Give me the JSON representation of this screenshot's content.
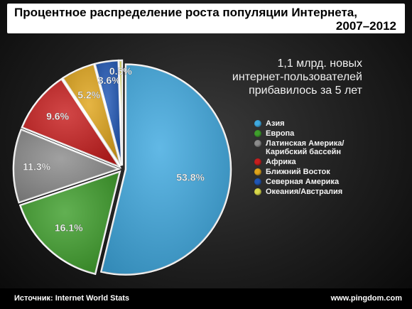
{
  "title_line1": "Процентное распределение роста популяции Интернета,",
  "title_line2": "2007–2012",
  "subtitle_lines": [
    "1,1 млрд. новых",
    "интернет-пользователей",
    "прибавилось за 5 лет"
  ],
  "footer": {
    "source": "Источник: Internet World Stats",
    "site": "www.pingdom.com"
  },
  "chart_data": {
    "type": "pie",
    "title": "Процентное распределение роста популяции Интернета, 2007–2012",
    "unit": "%",
    "slices": [
      {
        "name": "Азия",
        "value": 53.8,
        "label": "53.8%",
        "color": "#3fa9e0"
      },
      {
        "name": "Европа",
        "value": 16.1,
        "label": "16.1%",
        "color": "#3f9f2c"
      },
      {
        "name": "Латинская Америка/\nКарибский бассейн",
        "value": 11.3,
        "label": "11.3%",
        "color": "#8c8c8c"
      },
      {
        "name": "Африка",
        "value": 9.6,
        "label": "9.6%",
        "color": "#c81e1e"
      },
      {
        "name": "Ближний Восток",
        "value": 5.2,
        "label": "5.2%",
        "color": "#e0a51b"
      },
      {
        "name": "Северная Америка",
        "value": 3.6,
        "label": "3.6%",
        "color": "#1f56b5"
      },
      {
        "name": "Океания/Австралия",
        "value": 0.5,
        "label": "0.5%",
        "color": "#d9d94a"
      }
    ],
    "legend_position": "right"
  }
}
